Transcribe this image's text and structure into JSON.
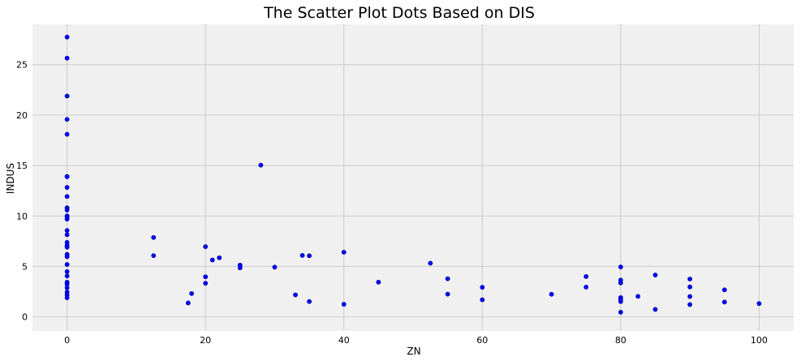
{
  "chart_data": {
    "type": "scatter",
    "title": "The Scatter Plot Dots Based on DIS",
    "xlabel": "ZN",
    "ylabel": "INDUS",
    "xlim": [
      -5,
      105
    ],
    "ylim": [
      -1.4,
      29
    ],
    "x_ticks": [
      0,
      20,
      40,
      60,
      80,
      100
    ],
    "y_ticks": [
      0,
      5,
      10,
      15,
      20,
      25
    ],
    "grid": true,
    "colors": {
      "point": "#0000ff",
      "point_edge": "#00009a",
      "background": "#f0f0f0",
      "grid": "#cbcbcb"
    },
    "points": [
      [
        0,
        27.74
      ],
      [
        0,
        25.65
      ],
      [
        0,
        21.89
      ],
      [
        0,
        19.58
      ],
      [
        0,
        18.1
      ],
      [
        0,
        13.92
      ],
      [
        0,
        13.89
      ],
      [
        0,
        12.83
      ],
      [
        0,
        11.93
      ],
      [
        0,
        10.81
      ],
      [
        0,
        10.59
      ],
      [
        0,
        10.01
      ],
      [
        0,
        9.9
      ],
      [
        0,
        9.69
      ],
      [
        0,
        8.56
      ],
      [
        0,
        8.14
      ],
      [
        0,
        7.38
      ],
      [
        0,
        7.07
      ],
      [
        0,
        6.91
      ],
      [
        0,
        6.2
      ],
      [
        0,
        5.96
      ],
      [
        0,
        5.19
      ],
      [
        0,
        4.49
      ],
      [
        0,
        4.05
      ],
      [
        0,
        3.44
      ],
      [
        0,
        3.24
      ],
      [
        0,
        2.89
      ],
      [
        0,
        2.46
      ],
      [
        0,
        2.18
      ],
      [
        0,
        1.89
      ],
      [
        12.5,
        7.87
      ],
      [
        12.5,
        6.07
      ],
      [
        17.5,
        1.38
      ],
      [
        18,
        2.31
      ],
      [
        20,
        6.96
      ],
      [
        20,
        3.97
      ],
      [
        20,
        3.33
      ],
      [
        21,
        5.64
      ],
      [
        22,
        5.86
      ],
      [
        25,
        5.13
      ],
      [
        25,
        4.86
      ],
      [
        28,
        15.04
      ],
      [
        30,
        4.93
      ],
      [
        33,
        2.18
      ],
      [
        34,
        6.09
      ],
      [
        35,
        6.06
      ],
      [
        35,
        1.52
      ],
      [
        40,
        6.41
      ],
      [
        40,
        1.25
      ],
      [
        45,
        3.44
      ],
      [
        52.5,
        5.32
      ],
      [
        55,
        3.78
      ],
      [
        55,
        2.25
      ],
      [
        60,
        2.93
      ],
      [
        60,
        1.69
      ],
      [
        70,
        2.24
      ],
      [
        75,
        4.0
      ],
      [
        75,
        2.95
      ],
      [
        80,
        4.95
      ],
      [
        80,
        3.64
      ],
      [
        80,
        3.37
      ],
      [
        80,
        1.91
      ],
      [
        80,
        1.76
      ],
      [
        80,
        1.52
      ],
      [
        80,
        0.46
      ],
      [
        82.5,
        2.03
      ],
      [
        85,
        4.15
      ],
      [
        85,
        0.74
      ],
      [
        90,
        3.75
      ],
      [
        90,
        2.97
      ],
      [
        90,
        2.02
      ],
      [
        90,
        1.22
      ],
      [
        95,
        2.68
      ],
      [
        95,
        1.47
      ],
      [
        100,
        1.32
      ]
    ]
  }
}
